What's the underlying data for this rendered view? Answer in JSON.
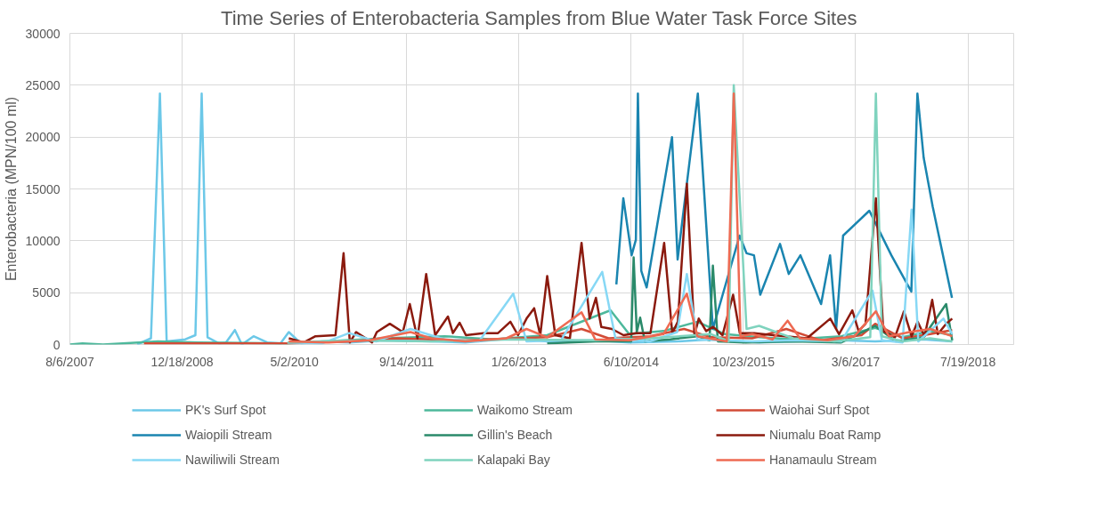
{
  "chart_data": {
    "type": "line",
    "title": "Time Series of Enterobacteria Samples from  Blue Water Task Force Sites",
    "ylabel": "Enterobacteria (MPN/100 ml)",
    "xlim": [
      "2007-08-06",
      "2019-02-08"
    ],
    "ylim": [
      0,
      30000
    ],
    "xticks": [
      {
        "value": "2007-08-06",
        "label": "8/6/2007"
      },
      {
        "value": "2008-12-18",
        "label": "12/18/2008"
      },
      {
        "value": "2010-05-02",
        "label": "5/2/2010"
      },
      {
        "value": "2011-09-14",
        "label": "9/14/2011"
      },
      {
        "value": "2013-01-26",
        "label": "1/26/2013"
      },
      {
        "value": "2014-06-10",
        "label": "6/10/2014"
      },
      {
        "value": "2015-10-23",
        "label": "10/23/2015"
      },
      {
        "value": "2017-03-06",
        "label": "3/6/2017"
      },
      {
        "value": "2018-07-19",
        "label": "7/19/2018"
      }
    ],
    "yticks": [
      0,
      5000,
      10000,
      15000,
      20000,
      25000,
      30000
    ],
    "grid": true,
    "legend": "bottom",
    "marker": "none",
    "line_style": "solid",
    "series": [
      {
        "name": "PK's Surf Spot",
        "color": "#6cc8e8",
        "x": [
          "2008-06-01",
          "2008-08-01",
          "2008-09-10",
          "2008-10-10",
          "2009-01-01",
          "2009-02-15",
          "2009-03-15",
          "2009-04-10",
          "2009-06-01",
          "2009-07-01",
          "2009-08-10",
          "2009-09-10",
          "2009-11-01",
          "2010-01-01",
          "2010-03-01",
          "2010-04-07",
          "2010-06-01",
          "2010-09-01",
          "2011-01-01",
          "2011-06-01",
          "2012-01-01",
          "2012-06-01",
          "2013-01-01",
          "2013-06-01",
          "2014-01-01",
          "2014-06-01",
          "2015-01-01",
          "2015-06-01",
          "2016-01-01",
          "2016-06-01",
          "2017-01-01",
          "2017-06-01",
          "2018-01-01",
          "2018-05-10"
        ],
        "values": [
          0,
          600,
          24200,
          300,
          500,
          900,
          24200,
          700,
          100,
          200,
          1400,
          0,
          800,
          200,
          100,
          1200,
          100,
          300,
          200,
          400,
          300,
          200,
          600,
          300,
          400,
          200,
          300,
          500,
          200,
          300,
          400,
          300,
          500,
          300
        ]
      },
      {
        "name": "Waikomo Stream",
        "color": "#4db89b",
        "x": [
          "2007-08-06",
          "2007-10-01",
          "2008-01-01",
          "2008-09-01",
          "2009-03-01",
          "2010-04-01",
          "2011-06-01",
          "2012-03-01",
          "2012-10-01",
          "2013-06-01",
          "2014-03-10",
          "2014-06-01",
          "2014-11-01",
          "2015-04-01",
          "2015-08-01",
          "2016-01-01",
          "2016-06-01",
          "2017-01-01",
          "2017-06-01",
          "2017-10-01",
          "2018-02-01",
          "2018-05-10"
        ],
        "values": [
          0,
          100,
          0,
          300,
          200,
          100,
          600,
          800,
          500,
          900,
          3300,
          1000,
          1300,
          2200,
          1000,
          700,
          500,
          800,
          1600,
          700,
          1300,
          900
        ]
      },
      {
        "name": "Waiohai Surf Spot",
        "color": "#d24b36",
        "x": [
          "2008-07-01",
          "2009-06-01",
          "2010-04-01",
          "2011-01-01",
          "2011-08-01",
          "2012-06-01",
          "2013-06-01",
          "2013-11-01",
          "2014-03-01",
          "2014-09-01",
          "2015-02-01",
          "2015-06-01",
          "2015-12-01",
          "2016-05-01",
          "2016-10-01",
          "2017-04-01",
          "2017-06-01",
          "2017-10-01",
          "2018-02-01",
          "2018-05-10"
        ],
        "values": [
          100,
          100,
          100,
          300,
          600,
          400,
          700,
          1500,
          600,
          800,
          1500,
          700,
          600,
          1500,
          400,
          900,
          2000,
          600,
          1000,
          1400
        ]
      },
      {
        "name": "Waiopili Stream",
        "color": "#1a85b0",
        "x": [
          "2014-04-05",
          "2014-05-06",
          "2014-06-12",
          "2014-07-01",
          "2014-07-10",
          "2014-07-25",
          "2014-08-18",
          "2014-12-09",
          "2015-01-03",
          "2015-04-03",
          "2015-06-09",
          "2015-10-06",
          "2015-11-06",
          "2015-12-09",
          "2016-01-06",
          "2016-04-03",
          "2016-05-12",
          "2016-07-03",
          "2016-10-03",
          "2016-11-12",
          "2016-12-09",
          "2017-01-09",
          "2017-05-06",
          "2017-08-12",
          "2017-11-09",
          "2017-12-06",
          "2018-01-03",
          "2018-02-12",
          "2018-05-09"
        ],
        "values": [
          5800,
          14100,
          8600,
          10100,
          24200,
          7100,
          5500,
          20000,
          8200,
          24200,
          1500,
          10500,
          8800,
          8600,
          4800,
          9700,
          6800,
          8600,
          3900,
          8600,
          1500,
          10500,
          12900,
          8600,
          5100,
          24200,
          18000,
          13300,
          4500
        ]
      },
      {
        "name": "Gillin's Beach",
        "color": "#2a8a6a",
        "x": [
          "2013-06-01",
          "2014-01-01",
          "2014-06-10",
          "2014-06-21",
          "2014-07-05",
          "2014-07-20",
          "2014-08-10",
          "2014-12-01",
          "2015-04-01",
          "2015-05-25",
          "2015-06-09",
          "2015-07-01",
          "2015-11-01",
          "2016-06-01",
          "2017-01-01",
          "2017-06-01",
          "2017-09-01",
          "2018-01-01",
          "2018-04-13",
          "2018-05-10"
        ],
        "values": [
          100,
          300,
          300,
          8400,
          1200,
          2600,
          300,
          500,
          800,
          400,
          7600,
          300,
          200,
          300,
          200,
          1800,
          300,
          700,
          3900,
          400
        ]
      },
      {
        "name": "Niumalu Boat Ramp",
        "color": "#8b1a0e",
        "x": [
          "2010-04-07",
          "2010-06-13",
          "2010-08-04",
          "2010-11-01",
          "2010-12-07",
          "2011-01-04",
          "2011-02-01",
          "2011-04-13",
          "2011-05-04",
          "2011-07-01",
          "2011-08-28",
          "2011-09-28",
          "2011-11-01",
          "2011-12-10",
          "2012-01-19",
          "2012-03-16",
          "2012-04-07",
          "2012-05-07",
          "2012-06-04",
          "2012-08-22",
          "2012-10-25",
          "2012-12-19",
          "2013-01-22",
          "2013-03-01",
          "2013-04-04",
          "2013-05-01",
          "2013-06-01",
          "2013-07-07",
          "2013-09-10",
          "2013-11-01",
          "2013-12-07",
          "2014-01-04",
          "2014-01-28",
          "2014-03-16",
          "2014-05-07",
          "2014-07-01",
          "2014-09-04",
          "2014-11-04",
          "2014-12-10",
          "2015-01-04",
          "2015-02-13",
          "2015-03-19",
          "2015-04-07",
          "2015-05-10",
          "2015-06-10",
          "2015-07-22",
          "2015-09-07",
          "2015-10-07",
          "2015-12-10",
          "2016-03-04",
          "2016-08-01",
          "2016-11-13",
          "2016-12-22",
          "2017-02-19",
          "2017-03-19",
          "2017-04-19",
          "2017-06-04",
          "2017-07-07",
          "2017-08-28",
          "2017-10-07",
          "2017-11-10",
          "2017-12-07",
          "2018-01-07",
          "2018-02-10",
          "2018-03-07",
          "2018-04-13",
          "2018-05-10"
        ],
        "values": [
          600,
          200,
          800,
          900,
          8800,
          200,
          1200,
          200,
          1200,
          2000,
          1200,
          3900,
          600,
          6800,
          900,
          2700,
          1100,
          2100,
          900,
          1100,
          1100,
          2200,
          900,
          2500,
          3500,
          900,
          6600,
          900,
          600,
          9800,
          2500,
          4500,
          1700,
          1500,
          900,
          1100,
          1100,
          9800,
          1100,
          2200,
          15500,
          900,
          2500,
          1300,
          1700,
          900,
          4800,
          1100,
          1100,
          900,
          600,
          2500,
          1000,
          3300,
          1300,
          2000,
          14100,
          1300,
          700,
          3200,
          800,
          2200,
          800,
          4300,
          1000,
          2000,
          2500
        ]
      },
      {
        "name": "Nawiliwili Stream",
        "color": "#87d8f5",
        "x": [
          "2010-04-01",
          "2010-09-01",
          "2011-01-01",
          "2011-05-01",
          "2011-10-01",
          "2012-03-01",
          "2012-08-01",
          "2013-01-01",
          "2013-03-01",
          "2013-08-01",
          "2014-02-01",
          "2014-04-01",
          "2014-09-01",
          "2015-01-01",
          "2015-02-13",
          "2015-04-01",
          "2015-12-01",
          "2016-06-01",
          "2017-01-01",
          "2017-05-20",
          "2017-07-01",
          "2017-10-01",
          "2017-11-10",
          "2017-12-10",
          "2018-04-01",
          "2018-05-10"
        ],
        "values": [
          200,
          100,
          1100,
          300,
          1500,
          500,
          300,
          4900,
          300,
          400,
          7000,
          600,
          300,
          1200,
          6800,
          500,
          300,
          400,
          300,
          5200,
          400,
          200,
          13000,
          300,
          2500,
          1000
        ]
      },
      {
        "name": "Kalapaki Bay",
        "color": "#7fd3be",
        "x": [
          "2010-04-01",
          "2011-01-01",
          "2012-01-01",
          "2013-01-01",
          "2014-01-01",
          "2014-09-01",
          "2015-06-01",
          "2015-08-18",
          "2015-09-10",
          "2015-11-06",
          "2016-01-01",
          "2016-06-01",
          "2016-12-01",
          "2017-04-01",
          "2017-05-10",
          "2017-06-04",
          "2017-07-01",
          "2017-10-01",
          "2018-02-01",
          "2018-05-10"
        ],
        "values": [
          200,
          400,
          300,
          500,
          400,
          600,
          1000,
          300,
          25000,
          1500,
          1800,
          600,
          300,
          600,
          700,
          24200,
          800,
          300,
          600,
          300
        ]
      },
      {
        "name": "Hanamaulu Stream",
        "color": "#ee6a52",
        "x": [
          "2010-04-07",
          "2010-10-01",
          "2011-04-01",
          "2011-10-01",
          "2012-01-01",
          "2012-06-01",
          "2012-12-01",
          "2013-03-01",
          "2013-06-01",
          "2013-11-01",
          "2014-01-01",
          "2014-06-01",
          "2014-11-01",
          "2015-02-13",
          "2015-04-01",
          "2015-08-10",
          "2015-09-10",
          "2015-10-10",
          "2015-12-01",
          "2016-03-01",
          "2016-05-07",
          "2016-07-01",
          "2016-11-01",
          "2017-03-01",
          "2017-06-04",
          "2017-08-01",
          "2017-11-01",
          "2018-02-01",
          "2018-05-10"
        ],
        "values": [
          300,
          200,
          400,
          1200,
          600,
          300,
          600,
          1500,
          700,
          3100,
          500,
          400,
          1000,
          4900,
          800,
          300,
          24200,
          800,
          1000,
          500,
          2300,
          600,
          400,
          800,
          3200,
          800,
          1200,
          1500,
          800
        ]
      }
    ]
  }
}
